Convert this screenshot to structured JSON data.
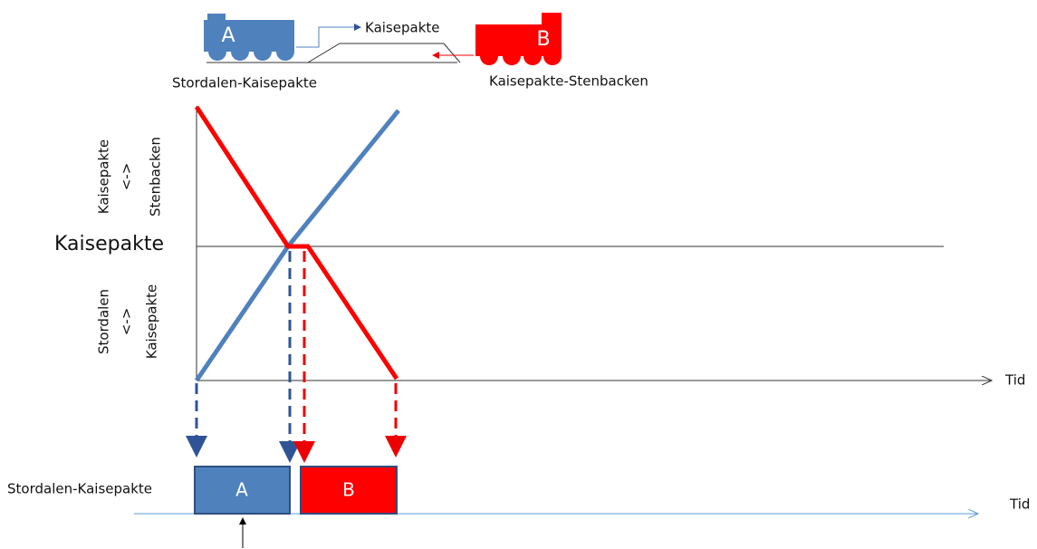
{
  "header": {
    "train_a": "A",
    "train_b": "B",
    "station": "Kaisepakte",
    "route_a": "Stordalen-Kaisepakte",
    "route_b": "Kaisepakte-Stenbacken"
  },
  "graph": {
    "upper_label": [
      "Kaisepakte",
      "<->",
      "Stenbacken"
    ],
    "lower_label": [
      "Stordalen",
      "<->",
      "Kaisepakte"
    ],
    "middle_label": "Kaisepakte",
    "x_label": "Tid"
  },
  "timeline": {
    "track_label": "Stordalen-Kaisepakte",
    "block_a": "A",
    "block_b": "B",
    "x_label": "Tid"
  }
}
